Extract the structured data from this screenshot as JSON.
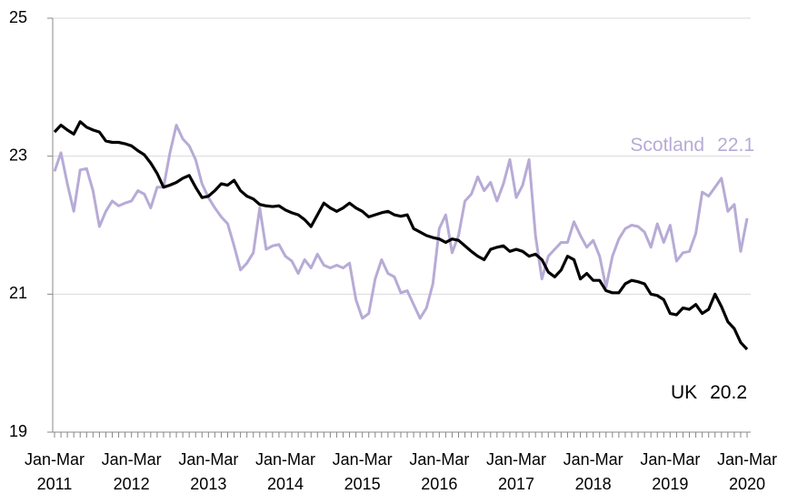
{
  "chart_data": {
    "type": "line",
    "categories": [
      "Jan-Mar 2011",
      null,
      null,
      null,
      null,
      null,
      null,
      null,
      null,
      null,
      null,
      null,
      "Jan-Mar 2012",
      null,
      null,
      null,
      null,
      null,
      null,
      null,
      null,
      null,
      null,
      null,
      "Jan-Mar 2013",
      null,
      null,
      null,
      null,
      null,
      null,
      null,
      null,
      null,
      null,
      null,
      "Jan-Mar 2014",
      null,
      null,
      null,
      null,
      null,
      null,
      null,
      null,
      null,
      null,
      null,
      "Jan-Mar 2015",
      null,
      null,
      null,
      null,
      null,
      null,
      null,
      null,
      null,
      null,
      null,
      "Jan-Mar 2016",
      null,
      null,
      null,
      null,
      null,
      null,
      null,
      null,
      null,
      null,
      null,
      "Jan-Mar 2017",
      null,
      null,
      null,
      null,
      null,
      null,
      null,
      null,
      null,
      null,
      null,
      "Jan-Mar 2018",
      null,
      null,
      null,
      null,
      null,
      null,
      null,
      null,
      null,
      null,
      null,
      "Jan-Mar 2019",
      null,
      null,
      null,
      null,
      null,
      null,
      null,
      null,
      null,
      null,
      null,
      "Jan-Mar 2020"
    ],
    "series": [
      {
        "name": "UK",
        "color": "#000000",
        "values": [
          23.35,
          23.45,
          23.38,
          23.32,
          23.5,
          23.42,
          23.38,
          23.35,
          23.22,
          23.2,
          23.2,
          23.18,
          23.15,
          23.08,
          23.02,
          22.9,
          22.75,
          22.55,
          22.58,
          22.62,
          22.68,
          22.72,
          22.55,
          22.4,
          22.42,
          22.5,
          22.6,
          22.58,
          22.65,
          22.5,
          22.42,
          22.38,
          22.3,
          22.28,
          22.27,
          22.28,
          22.22,
          22.18,
          22.15,
          22.08,
          21.98,
          22.15,
          22.32,
          22.25,
          22.2,
          22.25,
          22.32,
          22.25,
          22.2,
          22.12,
          22.15,
          22.18,
          22.2,
          22.15,
          22.13,
          22.15,
          21.95,
          21.9,
          21.85,
          21.82,
          21.8,
          21.75,
          21.8,
          21.78,
          21.7,
          21.62,
          21.55,
          21.5,
          21.65,
          21.68,
          21.7,
          21.62,
          21.65,
          21.62,
          21.55,
          21.58,
          21.5,
          21.32,
          21.25,
          21.35,
          21.55,
          21.5,
          21.22,
          21.3,
          21.2,
          21.2,
          21.05,
          21.02,
          21.02,
          21.15,
          21.2,
          21.18,
          21.15,
          21.0,
          20.98,
          20.92,
          20.72,
          20.7,
          20.8,
          20.78,
          20.85,
          20.72,
          20.78,
          21.0,
          20.82,
          20.6,
          20.5,
          20.3,
          20.2
        ]
      },
      {
        "name": "Scotland",
        "color": "#b7abd6",
        "values": [
          22.78,
          23.05,
          22.6,
          22.2,
          22.8,
          22.82,
          22.5,
          21.98,
          22.2,
          22.35,
          22.28,
          22.32,
          22.35,
          22.5,
          22.45,
          22.25,
          22.55,
          22.55,
          23.05,
          23.45,
          23.25,
          23.15,
          22.95,
          22.6,
          22.4,
          22.25,
          22.12,
          22.02,
          21.7,
          21.35,
          21.45,
          21.6,
          22.25,
          21.65,
          21.7,
          21.72,
          21.55,
          21.48,
          21.3,
          21.5,
          21.38,
          21.58,
          21.42,
          21.38,
          21.42,
          21.38,
          21.45,
          20.92,
          20.65,
          20.72,
          21.22,
          21.5,
          21.3,
          21.25,
          21.02,
          21.05,
          20.85,
          20.65,
          20.8,
          21.15,
          21.95,
          22.15,
          21.6,
          21.85,
          22.35,
          22.45,
          22.7,
          22.5,
          22.62,
          22.35,
          22.6,
          22.95,
          22.4,
          22.58,
          22.95,
          21.85,
          21.22,
          21.55,
          21.65,
          21.75,
          21.75,
          22.05,
          21.85,
          21.68,
          21.78,
          21.55,
          21.1,
          21.55,
          21.8,
          21.95,
          22.0,
          21.98,
          21.9,
          21.68,
          22.02,
          21.75,
          22.0,
          21.48,
          21.6,
          21.62,
          21.88,
          22.48,
          22.42,
          22.55,
          22.68,
          22.2,
          22.3,
          21.62,
          22.1
        ]
      }
    ],
    "ylim": [
      19,
      25
    ],
    "yticks": [
      19,
      21,
      23,
      25
    ],
    "grid": true
  }
}
